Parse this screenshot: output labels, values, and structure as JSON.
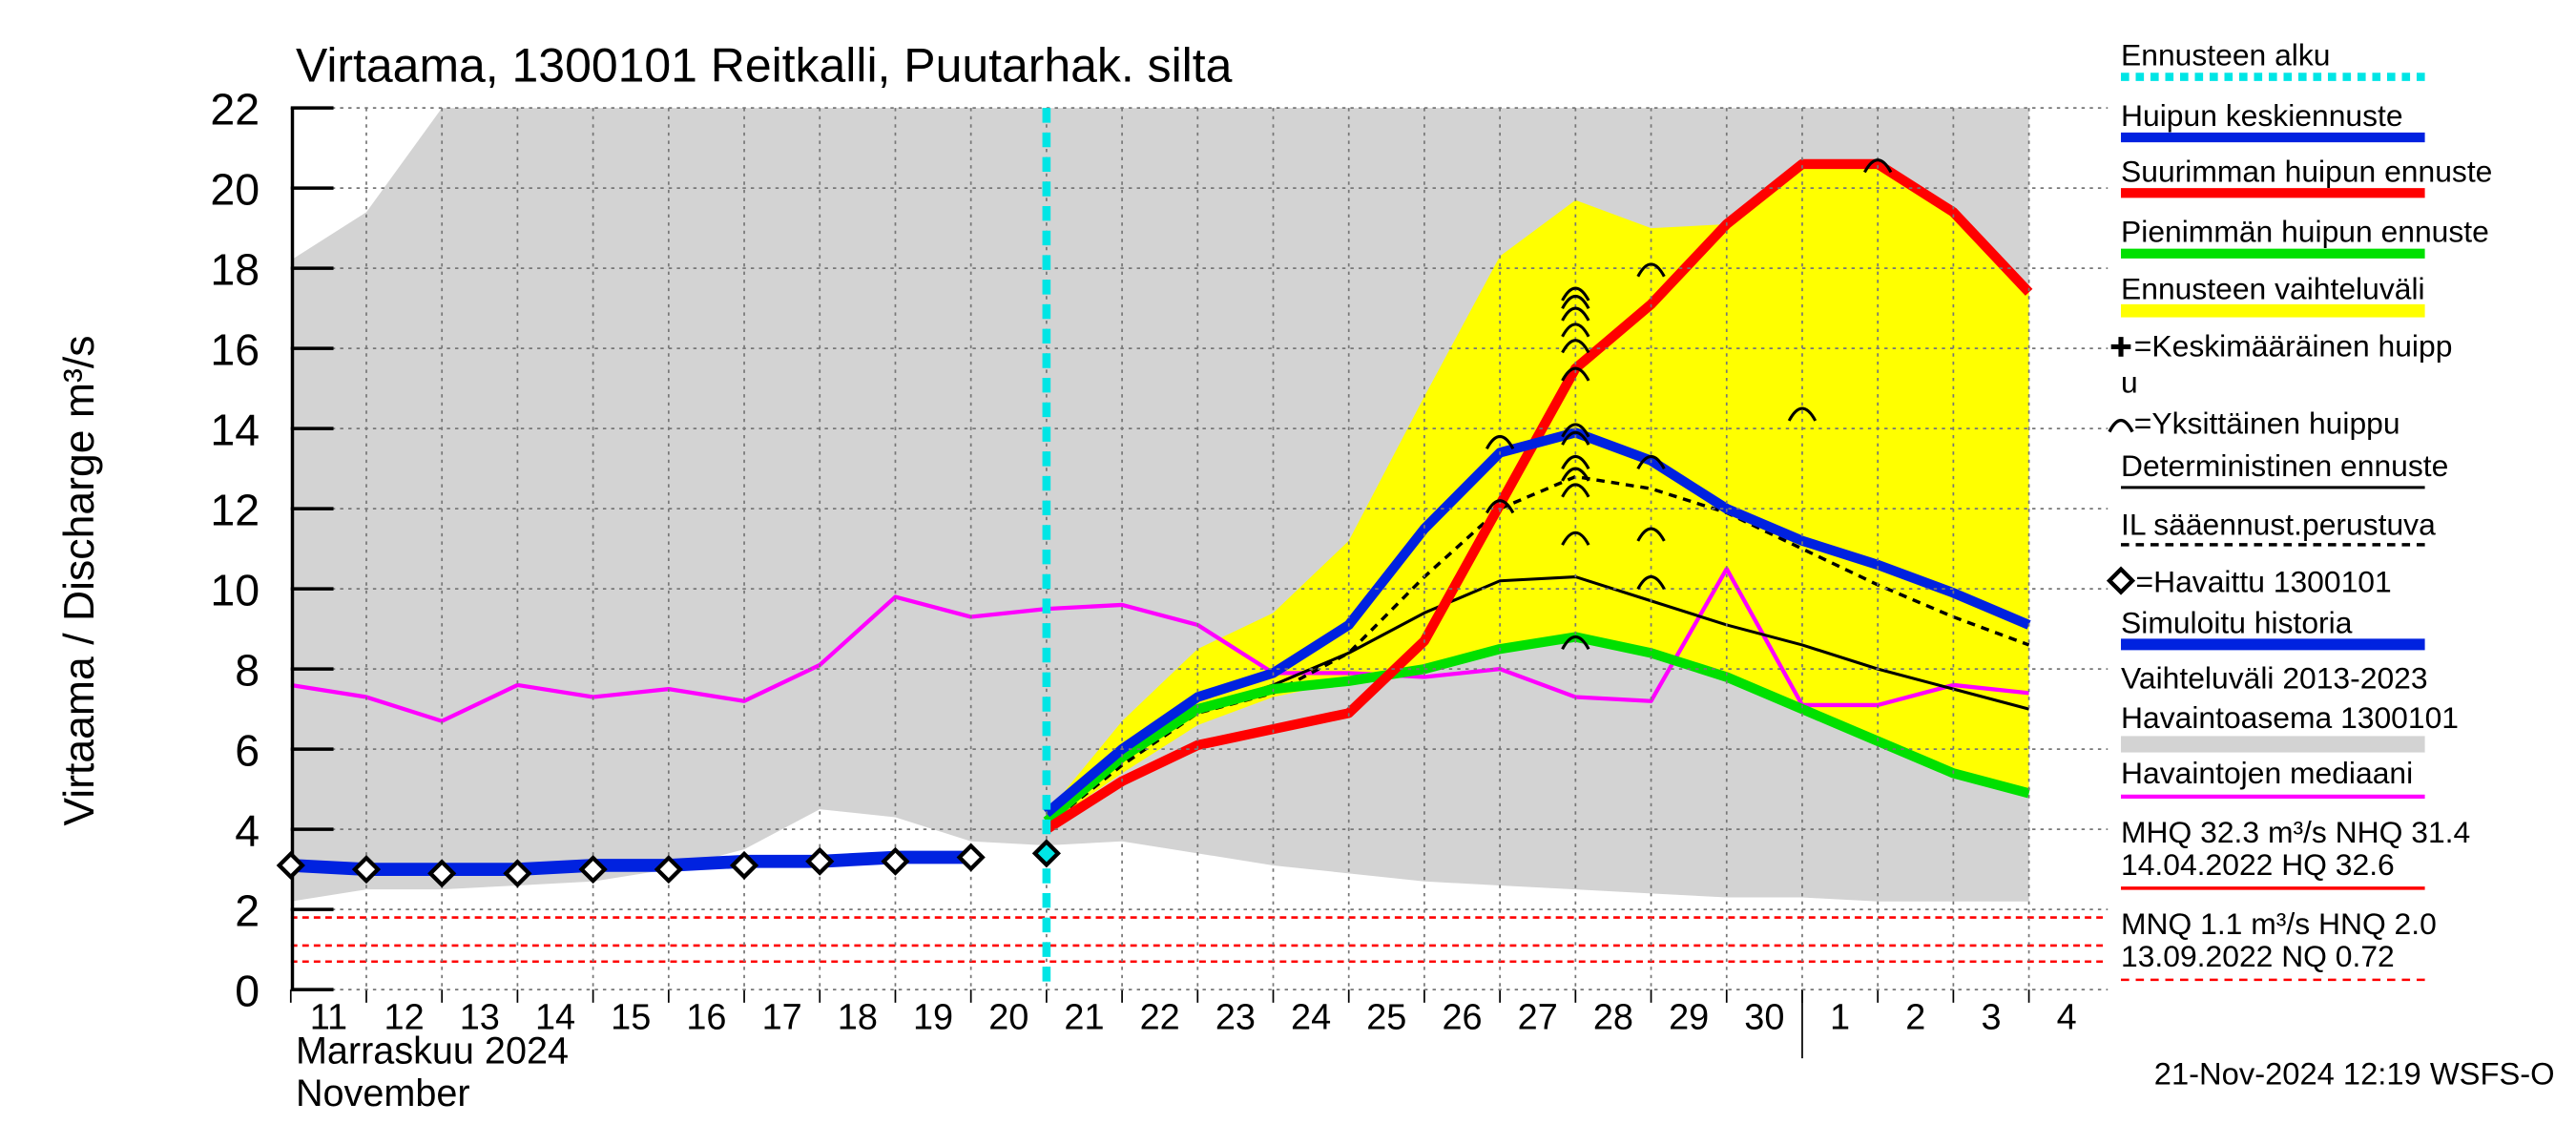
{
  "chart_data": {
    "type": "line",
    "title": "Virtaama, 1300101 Reitkalli, Puutarhak. silta",
    "y_label": "Virtaama / Discharge    m³/s",
    "x_label": "Marraskuu 2024",
    "x_label2": "November",
    "timestamp": "21-Nov-2024 12:19 WSFS-O",
    "categories": [
      "11",
      "12",
      "13",
      "14",
      "15",
      "16",
      "17",
      "18",
      "19",
      "20",
      "21",
      "22",
      "23",
      "24",
      "25",
      "26",
      "27",
      "28",
      "29",
      "30",
      "1",
      "2",
      "3",
      "4"
    ],
    "month_break": "1",
    "ylim": [
      0,
      22
    ],
    "yticks": [
      0,
      2,
      4,
      6,
      8,
      10,
      12,
      14,
      16,
      18,
      20,
      22
    ],
    "grid": true,
    "forecast_start": {
      "name": "Ennusteen alku",
      "category": "21",
      "color": "#00e5e5"
    },
    "bands": [
      {
        "name": "Vaihteluväli 2013-2023",
        "name2": " Havaintoasema 1300101",
        "color": "#d3d3d3",
        "upper": [
          18.2,
          19.4,
          22,
          22,
          22,
          22,
          22,
          22,
          22,
          22,
          22,
          22,
          22,
          22,
          22,
          22,
          22,
          22,
          22,
          22,
          22,
          22,
          22,
          22
        ],
        "lower": [
          2.2,
          2.5,
          2.5,
          2.6,
          2.7,
          3.0,
          3.5,
          4.5,
          4.3,
          3.7,
          3.6,
          3.7,
          3.4,
          3.1,
          2.9,
          2.7,
          2.6,
          2.5,
          2.4,
          2.3,
          2.3,
          2.2,
          2.2,
          2.2
        ]
      },
      {
        "name": "Ennusteen vaihteluväli",
        "color": "#ffff00",
        "upper": [
          null,
          null,
          null,
          null,
          null,
          null,
          null,
          null,
          null,
          null,
          4.4,
          6.7,
          8.5,
          9.4,
          11.2,
          14.8,
          18.3,
          19.7,
          19.0,
          19.1,
          20.6,
          20.7,
          19.4,
          17.4
        ],
        "lower": [
          null,
          null,
          null,
          null,
          null,
          null,
          null,
          null,
          null,
          null,
          4.1,
          5.4,
          6.6,
          7.3,
          7.7,
          8.0,
          8.5,
          8.8,
          8.4,
          7.8,
          7.0,
          6.2,
          5.4,
          4.9
        ]
      }
    ],
    "series": [
      {
        "name": "Havaintojen mediaani",
        "color": "#ff00ff",
        "width": 2.5,
        "dash": false,
        "values": [
          7.6,
          7.3,
          6.7,
          7.6,
          7.3,
          7.5,
          7.2,
          8.1,
          9.8,
          9.3,
          9.5,
          9.6,
          9.1,
          7.9,
          7.9,
          7.8,
          8.0,
          7.3,
          7.2,
          10.5,
          7.1,
          7.1,
          7.6,
          7.4
        ]
      },
      {
        "name": "Deterministinen ennuste",
        "color": "#000000",
        "width": 1.8,
        "dash": false,
        "values": [
          null,
          null,
          null,
          null,
          null,
          null,
          null,
          null,
          null,
          null,
          4.2,
          5.7,
          7.0,
          7.6,
          8.4,
          9.4,
          10.2,
          10.3,
          9.7,
          9.1,
          8.6,
          8.0,
          7.5,
          7.0
        ]
      },
      {
        "name": "IL sääennust.perustuva",
        "color": "#000000",
        "width": 2,
        "dash": true,
        "values": [
          null,
          null,
          null,
          null,
          null,
          null,
          null,
          null,
          null,
          null,
          4.1,
          5.6,
          6.9,
          7.4,
          8.4,
          10.3,
          12.0,
          12.8,
          12.5,
          11.9,
          11.0,
          10.1,
          9.3,
          8.6
        ]
      },
      {
        "name": "Pienimmän huipun ennuste",
        "color": "#00e000",
        "width": 6,
        "dash": false,
        "values": [
          null,
          null,
          null,
          null,
          null,
          null,
          null,
          null,
          null,
          null,
          4.2,
          5.8,
          7.0,
          7.5,
          7.7,
          8.0,
          8.5,
          8.8,
          8.4,
          7.8,
          7.0,
          6.2,
          5.4,
          4.9
        ]
      },
      {
        "name": "Suurimman huipun ennuste",
        "color": "#ff0000",
        "width": 6,
        "dash": false,
        "values": [
          null,
          null,
          null,
          null,
          null,
          null,
          null,
          null,
          null,
          null,
          4.0,
          5.2,
          6.1,
          6.5,
          6.9,
          8.7,
          12.1,
          15.5,
          17.1,
          19.1,
          20.6,
          20.6,
          19.4,
          17.4
        ]
      },
      {
        "name": "Huipun keskiennuste",
        "color": "#0022e0",
        "width": 6,
        "dash": false,
        "values": [
          null,
          null,
          null,
          null,
          null,
          null,
          null,
          null,
          null,
          null,
          4.4,
          6.0,
          7.3,
          7.9,
          9.1,
          11.5,
          13.4,
          13.9,
          13.2,
          12.0,
          11.2,
          10.6,
          9.9,
          9.1
        ]
      },
      {
        "name": "Simuloitu historia",
        "color": "#0022e0",
        "width": 8,
        "dash": false,
        "values": [
          3.1,
          3.0,
          3.0,
          3.0,
          3.1,
          3.1,
          3.2,
          3.2,
          3.3,
          3.3,
          null,
          null,
          null,
          null,
          null,
          null,
          null,
          null,
          null,
          null,
          null,
          null,
          null,
          null
        ]
      }
    ],
    "observed": {
      "name": "=Havaittu 1300101",
      "values": [
        3.1,
        3.0,
        2.9,
        2.9,
        3.0,
        3.0,
        3.1,
        3.2,
        3.2,
        3.3,
        3.4,
        null,
        null,
        null,
        null,
        null,
        null,
        null,
        null,
        null,
        null,
        null,
        null,
        null
      ]
    },
    "mean_peak": {
      "name": "=Keskimääräinen huipp",
      "name2": "u"
    },
    "single_peaks": {
      "name": "=Yksittäinen huippu",
      "categories": [
        "27",
        "27",
        "28",
        "28",
        "28",
        "28",
        "28",
        "28",
        "28",
        "28",
        "28",
        "28",
        "28",
        "28",
        "28",
        "29",
        "29",
        "29",
        "29",
        "1",
        "2"
      ],
      "values": [
        13.7,
        12.1,
        17.4,
        17.2,
        16.9,
        16.5,
        16.1,
        15.4,
        14.0,
        13.8,
        13.2,
        12.9,
        12.5,
        11.3,
        8.7,
        18.0,
        13.2,
        11.4,
        10.2,
        14.4,
        20.6
      ]
    },
    "references": [
      {
        "name": "MHQ 32.3 m³/s NHQ 31.4",
        "name2": "14.04.2022 HQ 32.6",
        "color": "#ff0000",
        "dash": false
      },
      {
        "name": "MNQ  1.1 m³/s HNQ  2.0",
        "name2": "13.09.2022 NQ 0.72",
        "color": "#ff0000",
        "dash": true,
        "values": [
          1.8,
          1.1,
          0.7
        ]
      }
    ]
  }
}
